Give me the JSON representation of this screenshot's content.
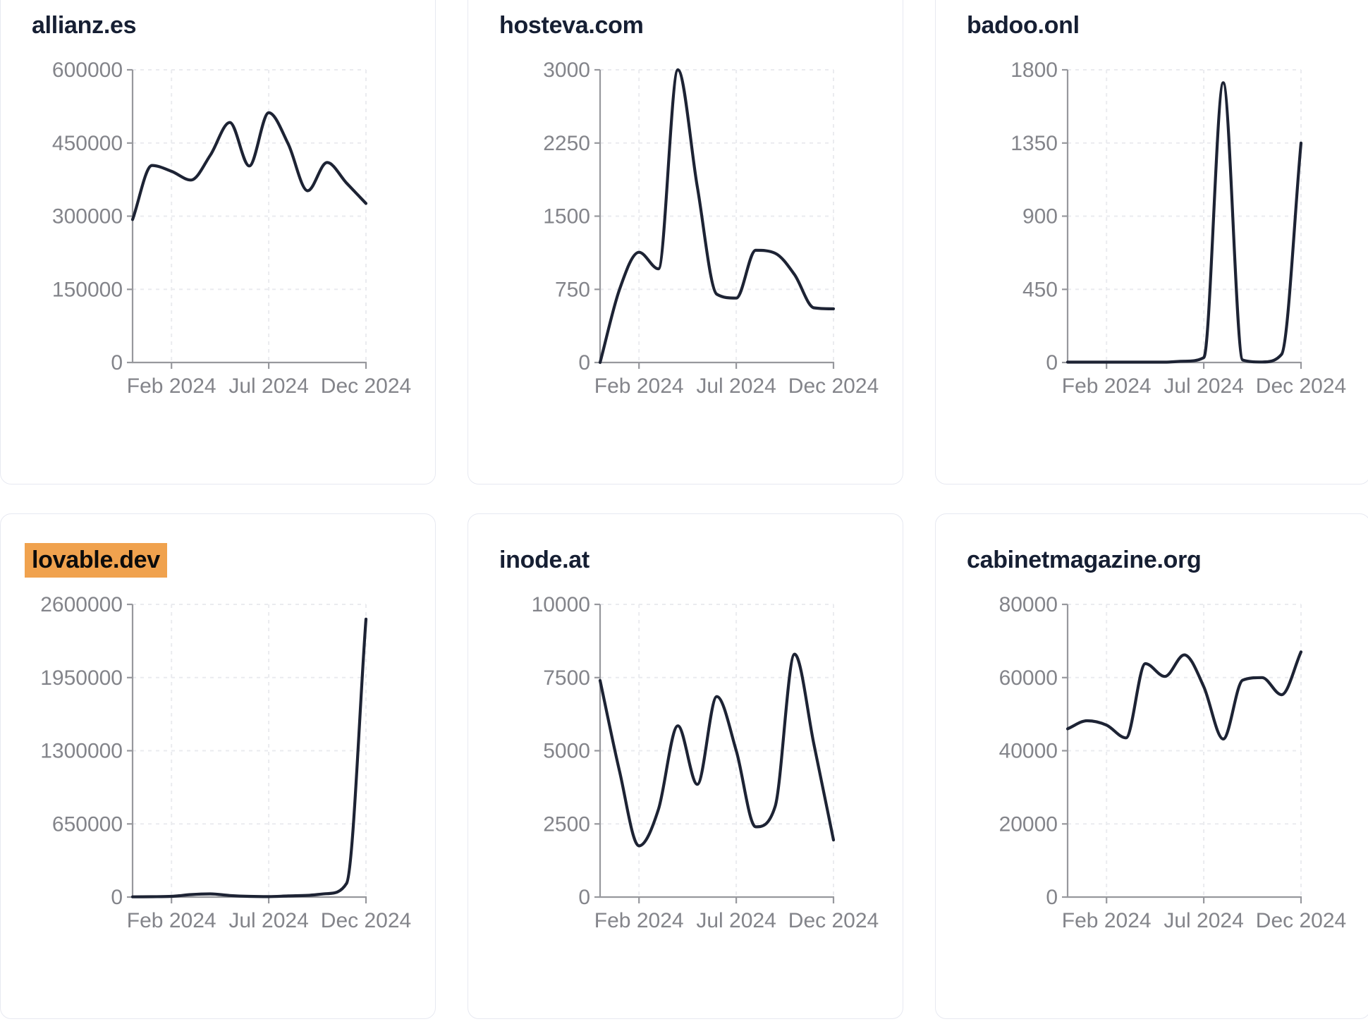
{
  "page": {
    "description": "Grid of six domain traffic trend cards"
  },
  "style": {
    "page_bg": "#ffffff",
    "card_bg": "#ffffff",
    "card_border": "#e7e9f1",
    "title_color": "#161f33",
    "highlight_bg": "#f0a24e",
    "highlight_text": "#0c0c0c",
    "line_color": "#1d2334",
    "grid_color": "#eaebef",
    "axis_color": "#97989d",
    "tick_color": "#83848a"
  },
  "chart_data": [
    {
      "type": "line",
      "title": "allianz.es",
      "title_highlighted": false,
      "x_domain": [
        "Dec 2023",
        "Dec 2024"
      ],
      "x_months": [
        "2023-12",
        "2024-01",
        "2024-02",
        "2024-03",
        "2024-04",
        "2024-05",
        "2024-06",
        "2024-07",
        "2024-08",
        "2024-09",
        "2024-10",
        "2024-11",
        "2024-12"
      ],
      "values": [
        293000,
        404000,
        392000,
        374000,
        425000,
        492000,
        403000,
        512000,
        448000,
        352000,
        410000,
        368000,
        326000
      ],
      "ylim": [
        0,
        600000
      ],
      "y_ticks": [
        0,
        150000,
        300000,
        450000,
        600000
      ],
      "x_tick_labels": [
        "Feb 2024",
        "Jul 2024",
        "Dec 2024"
      ],
      "x_tick_indices": [
        2,
        7,
        12
      ],
      "grid": "dashed",
      "legend": "none"
    },
    {
      "type": "line",
      "title": "hosteva.com",
      "title_highlighted": false,
      "x_domain": [
        "Dec 2023",
        "Dec 2024"
      ],
      "x_months": [
        "2023-12",
        "2024-01",
        "2024-02",
        "2024-03",
        "2024-04",
        "2024-05",
        "2024-06",
        "2024-07",
        "2024-08",
        "2024-09",
        "2024-10",
        "2024-11",
        "2024-12"
      ],
      "values": [
        0,
        750,
        1130,
        960,
        3000,
        1800,
        700,
        660,
        1150,
        1120,
        900,
        560,
        550
      ],
      "ylim": [
        0,
        3000
      ],
      "y_ticks": [
        0,
        750,
        1500,
        2250,
        3000
      ],
      "x_tick_labels": [
        "Feb 2024",
        "Jul 2024",
        "Dec 2024"
      ],
      "x_tick_indices": [
        2,
        7,
        12
      ],
      "grid": "dashed",
      "legend": "none"
    },
    {
      "type": "line",
      "title": "badoo.onl",
      "title_highlighted": false,
      "x_domain": [
        "Dec 2023",
        "Dec 2024"
      ],
      "x_months": [
        "2023-12",
        "2024-01",
        "2024-02",
        "2024-03",
        "2024-04",
        "2024-05",
        "2024-06",
        "2024-07",
        "2024-08",
        "2024-09",
        "2024-10",
        "2024-11",
        "2024-12"
      ],
      "values": [
        2,
        2,
        2,
        2,
        2,
        2,
        8,
        30,
        1720,
        15,
        3,
        50,
        1350
      ],
      "ylim": [
        0,
        1800
      ],
      "y_ticks": [
        0,
        450,
        900,
        1350,
        1800
      ],
      "x_tick_labels": [
        "Feb 2024",
        "Jul 2024",
        "Dec 2024"
      ],
      "x_tick_indices": [
        2,
        7,
        12
      ],
      "grid": "dashed",
      "legend": "none"
    },
    {
      "type": "line",
      "title": "lovable.dev",
      "title_highlighted": true,
      "x_domain": [
        "Dec 2023",
        "Dec 2024"
      ],
      "x_months": [
        "2023-12",
        "2024-01",
        "2024-02",
        "2024-03",
        "2024-04",
        "2024-05",
        "2024-06",
        "2024-07",
        "2024-08",
        "2024-09",
        "2024-10",
        "2024-11",
        "2024-12"
      ],
      "values": [
        2000,
        3000,
        6000,
        22000,
        28000,
        14000,
        6000,
        4000,
        10000,
        15000,
        30000,
        120000,
        2470000
      ],
      "ylim": [
        0,
        2600000
      ],
      "y_ticks": [
        0,
        650000,
        1300000,
        1950000,
        2600000
      ],
      "x_tick_labels": [
        "Feb 2024",
        "Jul 2024",
        "Dec 2024"
      ],
      "x_tick_indices": [
        2,
        7,
        12
      ],
      "grid": "dashed",
      "legend": "none"
    },
    {
      "type": "line",
      "title": "inode.at",
      "title_highlighted": false,
      "x_domain": [
        "Dec 2023",
        "Dec 2024"
      ],
      "x_months": [
        "2023-12",
        "2024-01",
        "2024-02",
        "2024-03",
        "2024-04",
        "2024-05",
        "2024-06",
        "2024-07",
        "2024-08",
        "2024-09",
        "2024-10",
        "2024-11",
        "2024-12"
      ],
      "values": [
        7400,
        4300,
        1750,
        3000,
        5850,
        3850,
        6850,
        5000,
        2400,
        3100,
        8300,
        5200,
        1950
      ],
      "ylim": [
        0,
        10000
      ],
      "y_ticks": [
        0,
        2500,
        5000,
        7500,
        10000
      ],
      "x_tick_labels": [
        "Feb 2024",
        "Jul 2024",
        "Dec 2024"
      ],
      "x_tick_indices": [
        2,
        7,
        12
      ],
      "grid": "dashed",
      "legend": "none"
    },
    {
      "type": "line",
      "title": "cabinetmagazine.org",
      "title_highlighted": false,
      "x_domain": [
        "Dec 2023",
        "Dec 2024"
      ],
      "x_months": [
        "2023-12",
        "2024-01",
        "2024-02",
        "2024-03",
        "2024-04",
        "2024-05",
        "2024-06",
        "2024-07",
        "2024-08",
        "2024-09",
        "2024-10",
        "2024-11",
        "2024-12"
      ],
      "values": [
        46000,
        48200,
        47000,
        43500,
        63800,
        60300,
        66200,
        57500,
        43200,
        59300,
        60000,
        55300,
        67000
      ],
      "ylim": [
        0,
        80000
      ],
      "y_ticks": [
        0,
        20000,
        40000,
        60000,
        80000
      ],
      "x_tick_labels": [
        "Feb 2024",
        "Jul 2024",
        "Dec 2024"
      ],
      "x_tick_indices": [
        2,
        7,
        12
      ],
      "grid": "dashed",
      "legend": "none"
    }
  ]
}
